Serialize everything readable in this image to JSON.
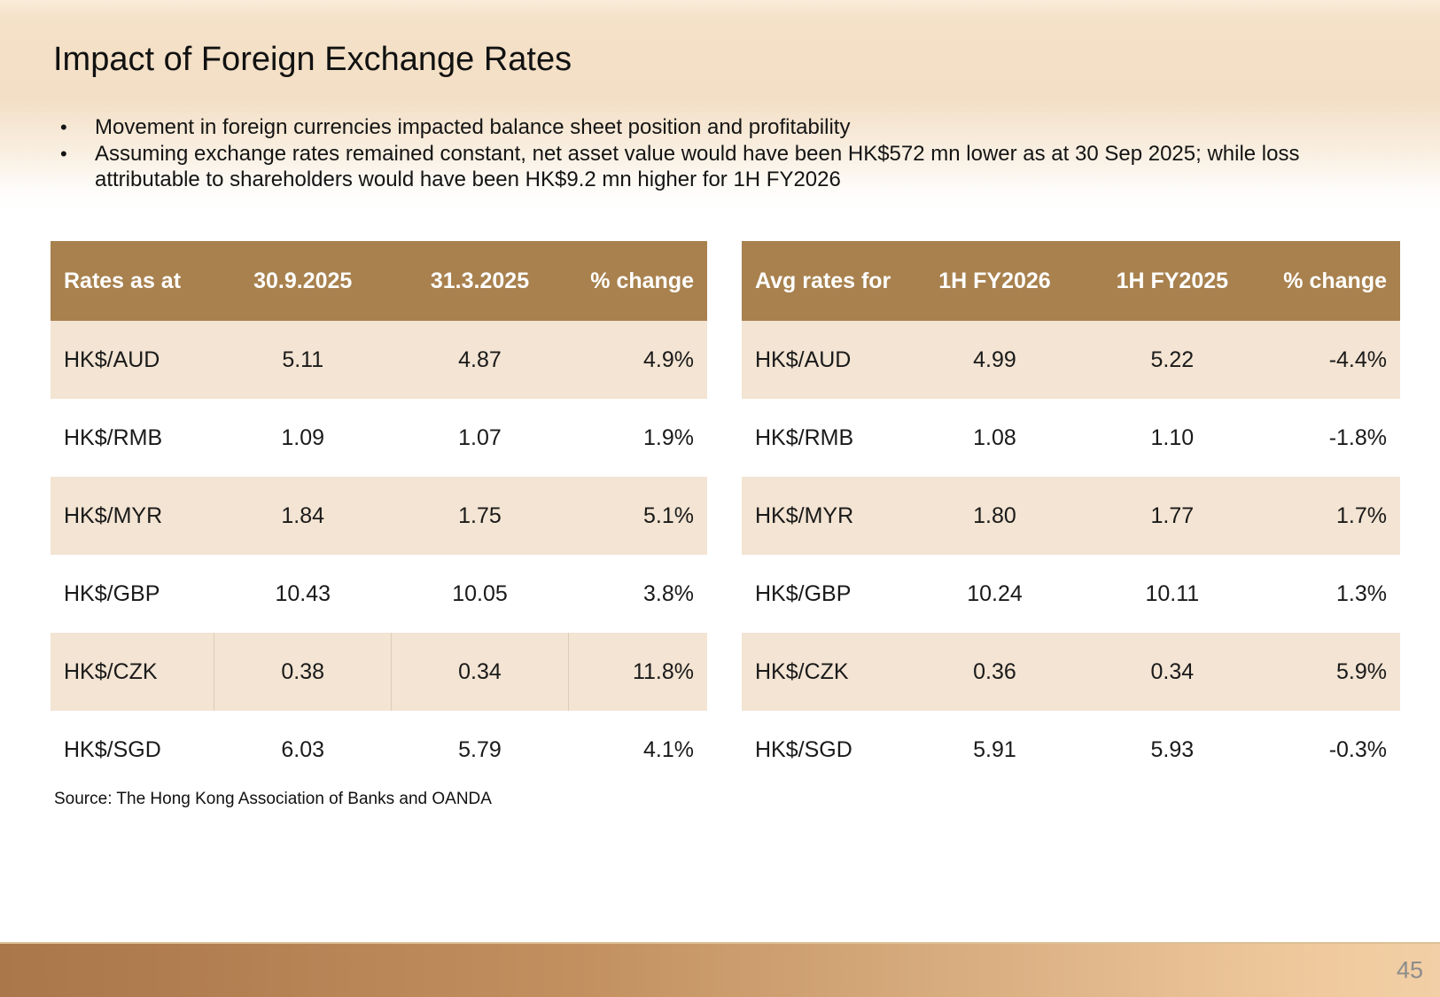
{
  "slide": {
    "title": "Impact of Foreign Exchange Rates",
    "bullets": [
      {
        "lines": [
          "Movement in foreign currencies impacted balance sheet position and profitability"
        ]
      },
      {
        "lines": [
          "Assuming exchange rates remained constant, net asset value would have been HK$572 mn lower as at 30 Sep 2025; while loss",
          "attributable to shareholders would have been HK$9.2 mn higher for 1H FY2026"
        ]
      }
    ],
    "source": "Source: The Hong Kong Association of Banks and OANDA",
    "page_number": "45"
  },
  "tables": [
    {
      "name": "rates-as-at",
      "header": [
        "Rates as at",
        "30.9.2025",
        "31.3.2025",
        "% change"
      ],
      "rows": [
        [
          "HK$/AUD",
          "5.11",
          "4.87",
          "4.9%"
        ],
        [
          "HK$/RMB",
          "1.09",
          "1.07",
          "1.9%"
        ],
        [
          "HK$/MYR",
          "1.84",
          "1.75",
          "5.1%"
        ],
        [
          "HK$/GBP",
          "10.43",
          "10.05",
          "3.8%"
        ],
        [
          "HK$/CZK",
          "0.38",
          "0.34",
          "11.8%"
        ],
        [
          "HK$/SGD",
          "6.03",
          "5.79",
          "4.1%"
        ]
      ]
    },
    {
      "name": "avg-rates-for",
      "header": [
        "Avg rates for",
        "1H FY2026",
        "1H FY2025",
        "% change"
      ],
      "rows": [
        [
          "HK$/AUD",
          "4.99",
          "5.22",
          "-4.4%"
        ],
        [
          "HK$/RMB",
          "1.08",
          "1.10",
          "-1.8%"
        ],
        [
          "HK$/MYR",
          "1.80",
          "1.77",
          "1.7%"
        ],
        [
          "HK$/GBP",
          "10.24",
          "10.11",
          "1.3%"
        ],
        [
          "HK$/CZK",
          "0.36",
          "0.34",
          "5.9%"
        ],
        [
          "HK$/SGD",
          "5.91",
          "5.93",
          "-0.3%"
        ]
      ]
    }
  ],
  "colors": {
    "table_header_bg": "#a8814e",
    "table_row_shaded": "#f3e4d3",
    "top_band": "#f3dfc6",
    "bottom_bar_left": "#a9774a",
    "bottom_bar_right": "#f0ca9e",
    "page_number_text": "#8c8c8c"
  }
}
